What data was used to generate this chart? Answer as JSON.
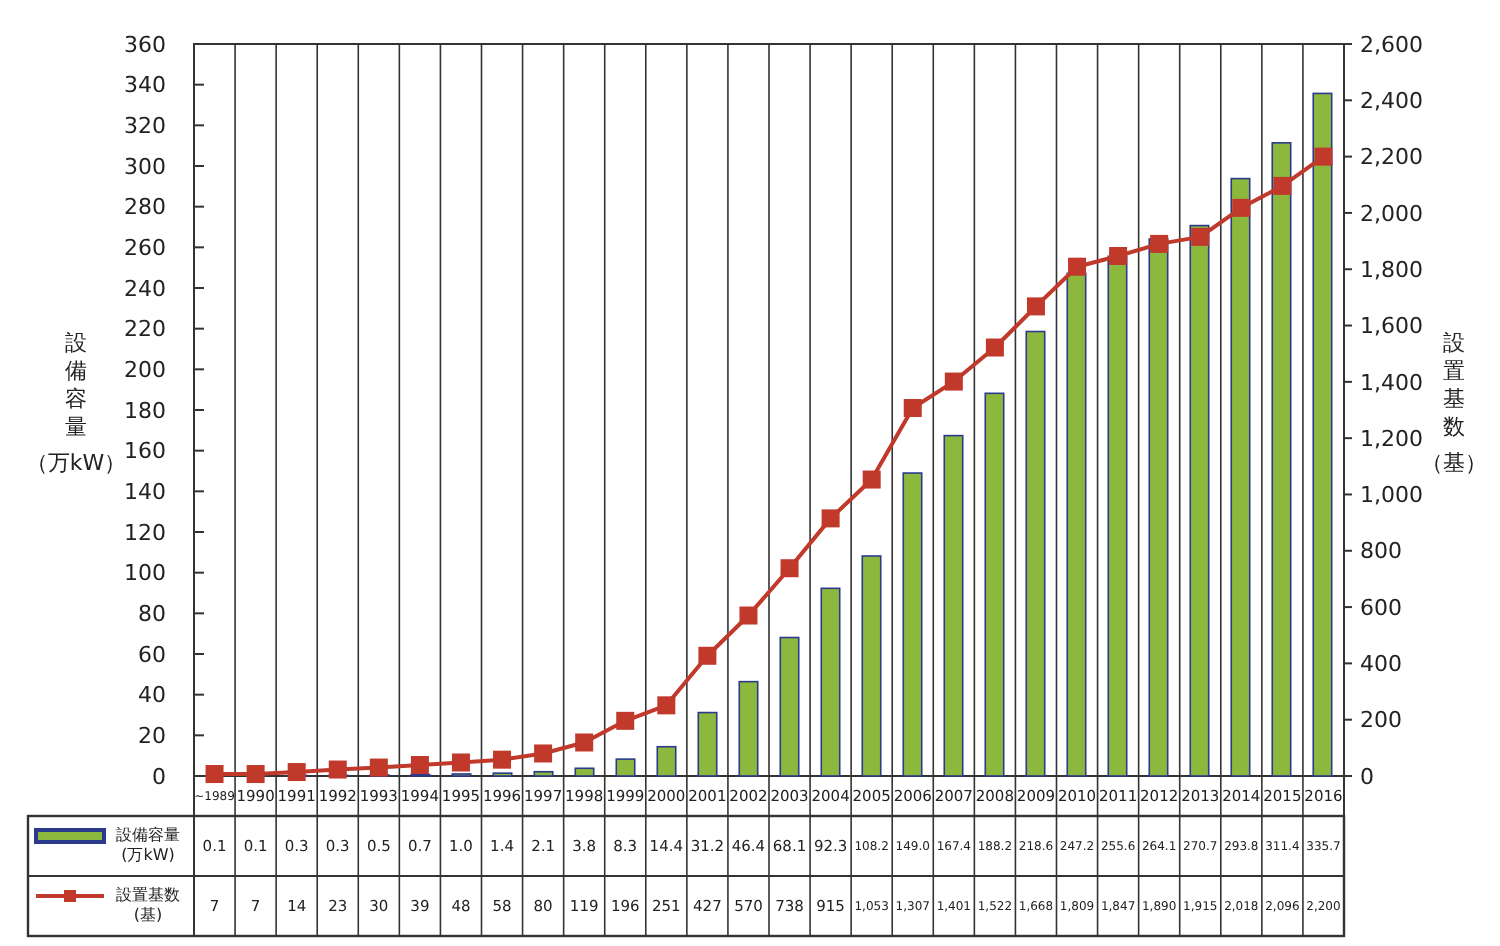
{
  "chart_data": {
    "type": "bar",
    "ylabel": "設備容量（万kW）",
    "y2label": "設置基数（基）",
    "categories": [
      "~1989",
      "1990",
      "1991",
      "1992",
      "1993",
      "1994",
      "1995",
      "1996",
      "1997",
      "1998",
      "1999",
      "2000",
      "2001",
      "2002",
      "2003",
      "2004",
      "2005",
      "2006",
      "2007",
      "2008",
      "2009",
      "2010",
      "2011",
      "2012",
      "2013",
      "2014",
      "2015",
      "2016"
    ],
    "series": [
      {
        "name": "設備容量(万kW)",
        "color": "#8db83e",
        "values": [
          0.1,
          0.1,
          0.3,
          0.3,
          0.5,
          0.7,
          1.0,
          1.4,
          2.1,
          3.8,
          8.3,
          14.4,
          31.2,
          46.4,
          68.1,
          92.3,
          108.2,
          149.0,
          167.4,
          188.2,
          218.6,
          247.2,
          255.6,
          264.1,
          270.7,
          293.8,
          311.4,
          335.7
        ],
        "value_labels": [
          "0.1",
          "0.1",
          "0.3",
          "0.3",
          "0.5",
          "0.7",
          "1.0",
          "1.4",
          "2.1",
          "3.8",
          "8.3",
          "14.4",
          "31.2",
          "46.4",
          "68.1",
          "92.3",
          "108.2",
          "149.0",
          "167.4",
          "188.2",
          "218.6",
          "247.2",
          "255.6",
          "264.1",
          "270.7",
          "293.8",
          "311.4",
          "335.7"
        ]
      },
      {
        "name": "設置基数(基)",
        "type": "line",
        "axis": "y2",
        "color": "#c0392b",
        "marker": "square",
        "values": [
          7,
          7,
          14,
          23,
          30,
          39,
          48,
          58,
          80,
          119,
          196,
          251,
          427,
          570,
          738,
          915,
          1053,
          1307,
          1401,
          1522,
          1668,
          1809,
          1847,
          1890,
          1915,
          2018,
          2096,
          2200
        ],
        "value_labels": [
          "7",
          "7",
          "14",
          "23",
          "30",
          "39",
          "48",
          "58",
          "80",
          "119",
          "196",
          "251",
          "427",
          "570",
          "738",
          "915",
          "1,053",
          "1,307",
          "1,401",
          "1,522",
          "1,668",
          "1,809",
          "1,847",
          "1,890",
          "1,915",
          "2,018",
          "2,096",
          "2,200"
        ]
      }
    ],
    "ylim": [
      0,
      360
    ],
    "yticks": [
      0,
      20,
      40,
      60,
      80,
      100,
      120,
      140,
      160,
      180,
      200,
      220,
      240,
      260,
      280,
      300,
      320,
      340,
      360
    ],
    "y2lim": [
      0,
      2600
    ],
    "y2ticks": [
      0,
      {
        "value": 200,
        "label": "200"
      },
      {
        "value": 400,
        "label": "400"
      },
      {
        "value": 600,
        "label": "600"
      },
      {
        "value": 800,
        "label": "800"
      },
      {
        "value": 1000,
        "label": "1,000"
      },
      {
        "value": 1200,
        "label": "1,200"
      },
      {
        "value": 1400,
        "label": "1,400"
      },
      {
        "value": 1600,
        "label": "1,600"
      },
      {
        "value": 1800,
        "label": "1,800"
      },
      {
        "value": 2000,
        "label": "2,000"
      },
      {
        "value": 2200,
        "label": "2,200"
      },
      {
        "value": 2400,
        "label": "2,400"
      },
      {
        "value": 2600,
        "label": "2,600"
      }
    ],
    "grid": "x",
    "legend": "bottom left"
  }
}
